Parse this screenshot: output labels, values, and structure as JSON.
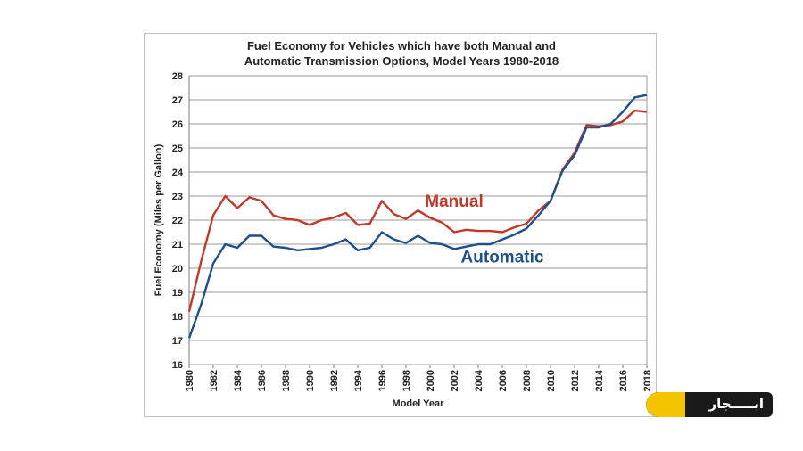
{
  "chart_data": {
    "type": "line",
    "title": [
      "Fuel Economy for Vehicles which have both Manual and",
      "Automatic Transmission Options, Model Years 1980-2018"
    ],
    "xlabel": "Model Year",
    "ylabel": "Fuel Economy  (Miles per Gallon)",
    "xlim": [
      1980,
      2018
    ],
    "ylim": [
      16,
      28
    ],
    "x_ticks": [
      1980,
      1982,
      1984,
      1986,
      1988,
      1990,
      1992,
      1994,
      1996,
      1998,
      2000,
      2002,
      2004,
      2006,
      2008,
      2010,
      2012,
      2014,
      2016,
      2018
    ],
    "y_ticks": [
      16,
      17,
      18,
      19,
      20,
      21,
      22,
      23,
      24,
      25,
      26,
      27,
      28
    ],
    "grid": "horizontal",
    "x": [
      1980,
      1981,
      1982,
      1983,
      1984,
      1985,
      1986,
      1987,
      1988,
      1989,
      1990,
      1991,
      1992,
      1993,
      1994,
      1995,
      1996,
      1997,
      1998,
      1999,
      2000,
      2001,
      2002,
      2003,
      2004,
      2005,
      2006,
      2007,
      2008,
      2009,
      2010,
      2011,
      2012,
      2013,
      2014,
      2015,
      2016,
      2017,
      2018
    ],
    "series": [
      {
        "name": "Manual",
        "color": "#c0392b",
        "values": [
          18.2,
          20.3,
          22.2,
          23.0,
          22.5,
          22.95,
          22.8,
          22.2,
          22.05,
          22.0,
          21.8,
          22.0,
          22.1,
          22.3,
          21.8,
          21.85,
          22.8,
          22.25,
          22.05,
          22.4,
          22.1,
          21.9,
          21.5,
          21.6,
          21.55,
          21.55,
          21.5,
          21.7,
          21.85,
          22.4,
          22.8,
          24.1,
          24.8,
          25.95,
          25.9,
          25.95,
          26.1,
          26.55,
          26.5
        ]
      },
      {
        "name": "Automatic",
        "color": "#1f4e8c",
        "values": [
          17.1,
          18.5,
          20.2,
          21.0,
          20.85,
          21.35,
          21.35,
          20.9,
          20.85,
          20.75,
          20.8,
          20.85,
          21.0,
          21.2,
          20.75,
          20.85,
          21.5,
          21.2,
          21.05,
          21.35,
          21.05,
          21.0,
          20.8,
          20.9,
          21.0,
          21.0,
          21.2,
          21.4,
          21.65,
          22.2,
          22.8,
          24.05,
          24.7,
          25.85,
          25.85,
          26.0,
          26.5,
          27.1,
          27.2
        ]
      }
    ]
  },
  "brand": {
    "text": "ابـــــجار",
    "accent_color": "#f5c400"
  }
}
